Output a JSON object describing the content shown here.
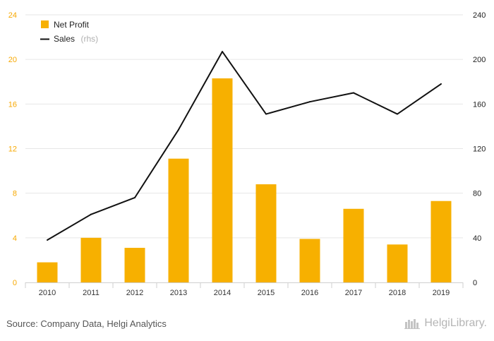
{
  "chart_data": {
    "type": "bar",
    "categories": [
      "2010",
      "2011",
      "2012",
      "2013",
      "2014",
      "2015",
      "2016",
      "2017",
      "2018",
      "2019"
    ],
    "series": [
      {
        "name": "Net Profit",
        "type": "bar",
        "axis": "left",
        "values": [
          1.8,
          4.0,
          3.1,
          11.1,
          18.3,
          8.8,
          3.9,
          6.6,
          3.4,
          7.3
        ],
        "color": "#f7b000"
      },
      {
        "name": "Sales",
        "name_suffix": "(rhs)",
        "type": "line",
        "axis": "right",
        "values": [
          38,
          61,
          76,
          137,
          207,
          151,
          162,
          170,
          151,
          178
        ],
        "color": "#111111"
      }
    ],
    "y_left": {
      "min": 0,
      "max": 24,
      "ticks": [
        "0",
        "4",
        "8",
        "12",
        "16",
        "20",
        "24"
      ],
      "color": "#f7a800"
    },
    "y_right": {
      "min": 0,
      "max": 240,
      "ticks": [
        "0",
        "40",
        "80",
        "120",
        "160",
        "200",
        "240"
      ]
    },
    "grid": true,
    "legend_position": "top-left"
  },
  "legend": {
    "net_profit": "Net Profit",
    "sales": "Sales",
    "sales_suffix": "(rhs)"
  },
  "footer": {
    "source": "Source: Company Data, Helgi Analytics",
    "brand": "HelgiLibrary."
  }
}
